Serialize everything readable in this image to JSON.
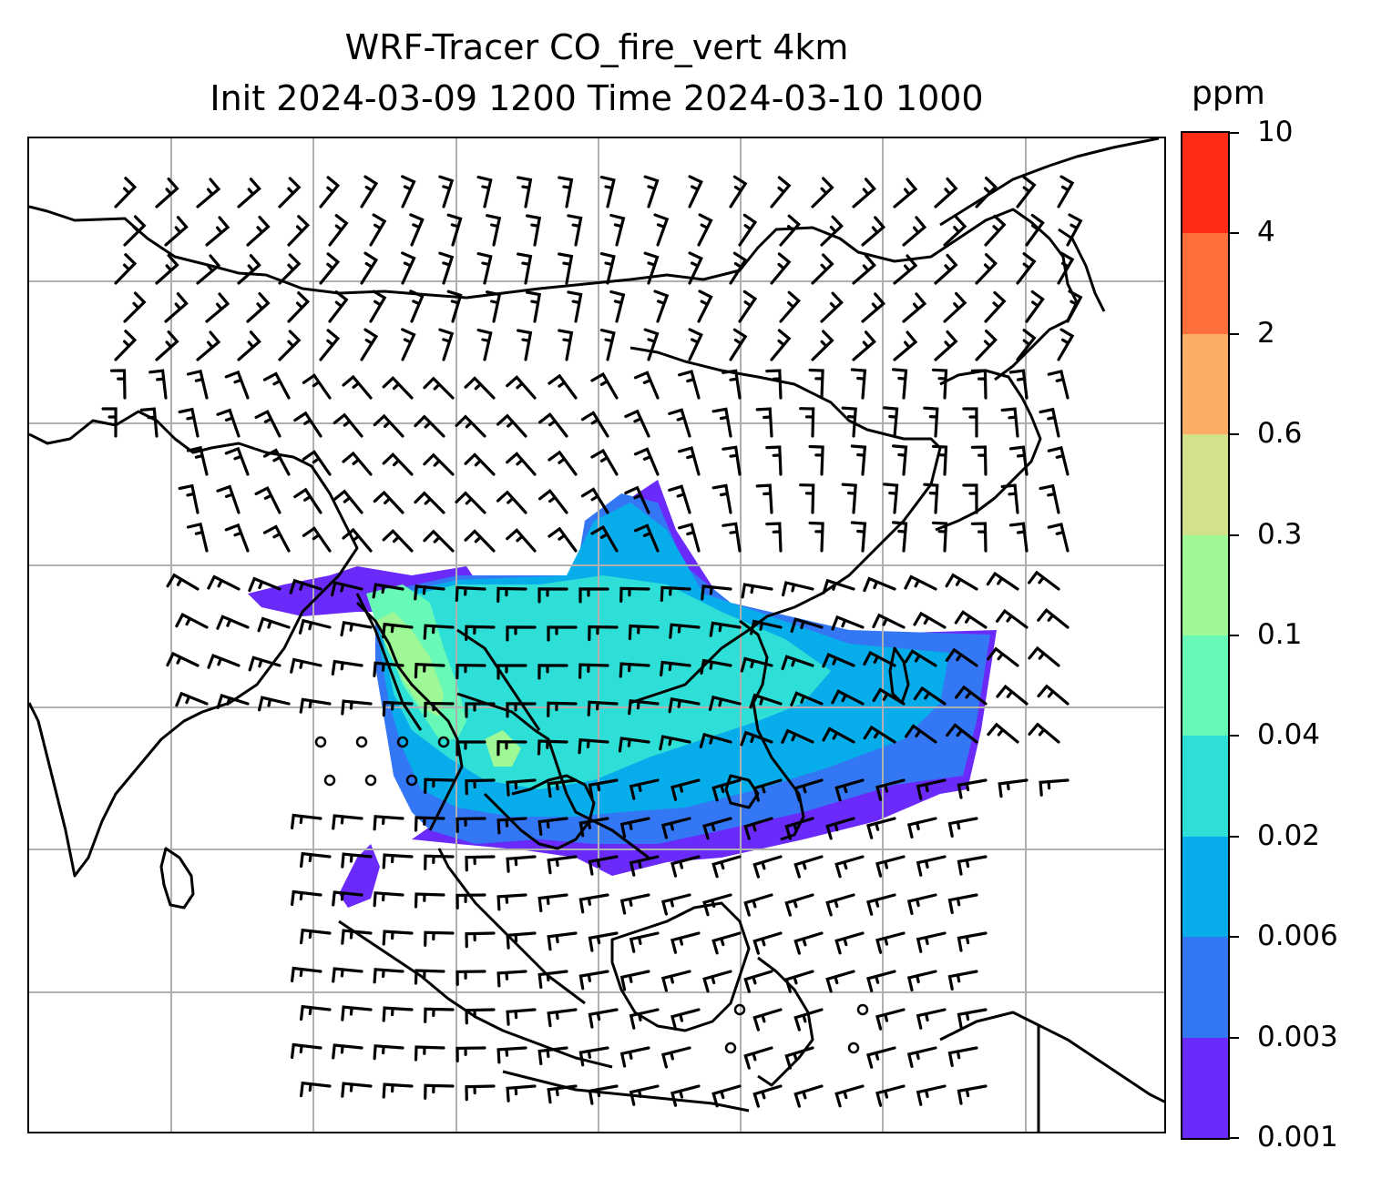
{
  "title_line1": "WRF-Tracer CO_fire_vert 4km",
  "title_line2": "Init 2024-03-09 1200 Time 2024-03-10 1000",
  "colorbar": {
    "unit": "ppm",
    "levels": [
      "0.001",
      "0.003",
      "0.006",
      "0.02",
      "0.04",
      "0.1",
      "0.3",
      "0.6",
      "2",
      "4",
      "10"
    ],
    "colors": [
      "#6a2afa",
      "#3477f4",
      "#06adea",
      "#2ddfd6",
      "#68f9b6",
      "#9ef896",
      "#d2e28a",
      "#fcad65",
      "#fe6f3c",
      "#ff2b17"
    ]
  },
  "map": {
    "graticule_color": "#b0b0b0",
    "coastline_color": "#000000",
    "barb_color": "#000000",
    "tracer_field": "CO_fire_vert"
  }
}
